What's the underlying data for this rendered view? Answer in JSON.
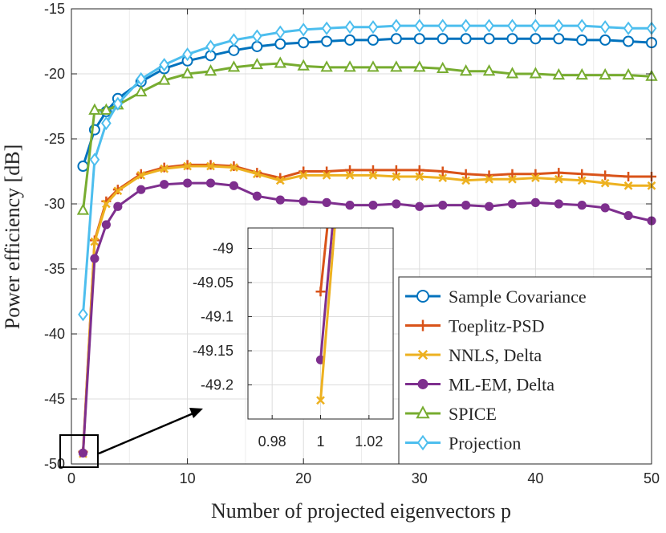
{
  "chart_data": {
    "type": "line",
    "xlabel": "Number of projected eigenvectors p",
    "ylabel": "Power efficiency [dB]",
    "xlim": [
      0,
      50
    ],
    "ylim": [
      -50,
      -15
    ],
    "xticks": [
      0,
      10,
      20,
      30,
      40,
      50
    ],
    "yticks": [
      -50,
      -45,
      -40,
      -35,
      -30,
      -25,
      -20,
      -15
    ],
    "grid": true,
    "legend_position": "bottom-right",
    "series": [
      {
        "name": "Sample Covariance",
        "color": "#0072BD",
        "marker": "circle",
        "x": [
          1,
          2,
          3,
          4,
          6,
          8,
          10,
          12,
          14,
          16,
          18,
          20,
          22,
          24,
          26,
          28,
          30,
          32,
          34,
          36,
          38,
          40,
          42,
          44,
          46,
          48,
          50
        ],
        "y": [
          -27.1,
          -24.3,
          -22.9,
          -21.9,
          -20.6,
          -19.6,
          -19.0,
          -18.6,
          -18.2,
          -17.9,
          -17.7,
          -17.6,
          -17.5,
          -17.4,
          -17.4,
          -17.3,
          -17.3,
          -17.3,
          -17.3,
          -17.3,
          -17.3,
          -17.3,
          -17.3,
          -17.4,
          -17.4,
          -17.5,
          -17.6
        ]
      },
      {
        "name": "Toeplitz-PSD",
        "color": "#D95319",
        "marker": "plus",
        "x": [
          1,
          2,
          3,
          4,
          6,
          8,
          10,
          12,
          14,
          16,
          18,
          20,
          22,
          24,
          26,
          28,
          30,
          32,
          34,
          36,
          38,
          40,
          42,
          44,
          46,
          48,
          50
        ],
        "y": [
          -49.06,
          -32.8,
          -29.8,
          -28.9,
          -27.7,
          -27.2,
          -27.0,
          -27.0,
          -27.1,
          -27.6,
          -28.0,
          -27.5,
          -27.5,
          -27.4,
          -27.4,
          -27.4,
          -27.4,
          -27.5,
          -27.7,
          -27.8,
          -27.7,
          -27.7,
          -27.6,
          -27.7,
          -27.8,
          -27.9,
          -27.9
        ]
      },
      {
        "name": "NNLS, Delta",
        "color": "#EDB120",
        "marker": "x",
        "x": [
          1,
          2,
          3,
          4,
          6,
          8,
          10,
          12,
          14,
          16,
          18,
          20,
          22,
          24,
          26,
          28,
          30,
          32,
          34,
          36,
          38,
          40,
          42,
          44,
          46,
          48,
          50
        ],
        "y": [
          -49.22,
          -32.9,
          -30.0,
          -29.0,
          -27.8,
          -27.3,
          -27.1,
          -27.1,
          -27.2,
          -27.7,
          -28.2,
          -27.8,
          -27.8,
          -27.8,
          -27.8,
          -27.9,
          -27.9,
          -28.0,
          -28.2,
          -28.1,
          -28.1,
          -28.0,
          -28.1,
          -28.2,
          -28.4,
          -28.6,
          -28.6
        ]
      },
      {
        "name": "ML-EM, Delta",
        "color": "#7E2F8E",
        "marker": "dot",
        "x": [
          1,
          2,
          3,
          4,
          6,
          8,
          10,
          12,
          14,
          16,
          18,
          20,
          22,
          24,
          26,
          28,
          30,
          32,
          34,
          36,
          38,
          40,
          42,
          44,
          46,
          48,
          50
        ],
        "y": [
          -49.16,
          -34.2,
          -31.6,
          -30.2,
          -28.9,
          -28.5,
          -28.4,
          -28.4,
          -28.6,
          -29.4,
          -29.7,
          -29.8,
          -29.9,
          -30.1,
          -30.1,
          -30.0,
          -30.2,
          -30.1,
          -30.1,
          -30.2,
          -30.0,
          -29.9,
          -30.0,
          -30.1,
          -30.3,
          -30.9,
          -31.3
        ]
      },
      {
        "name": "SPICE",
        "color": "#77AC30",
        "marker": "triangle",
        "x": [
          1,
          2,
          3,
          4,
          6,
          8,
          10,
          12,
          14,
          16,
          18,
          20,
          22,
          24,
          26,
          28,
          30,
          32,
          34,
          36,
          38,
          40,
          42,
          44,
          46,
          48,
          50
        ],
        "y": [
          -30.5,
          -22.8,
          -22.8,
          -22.4,
          -21.4,
          -20.5,
          -20.0,
          -19.8,
          -19.5,
          -19.3,
          -19.2,
          -19.4,
          -19.5,
          -19.5,
          -19.5,
          -19.5,
          -19.5,
          -19.6,
          -19.8,
          -19.8,
          -20.0,
          -20.0,
          -20.1,
          -20.1,
          -20.1,
          -20.1,
          -20.2
        ]
      },
      {
        "name": "Projection",
        "color": "#4DBEEE",
        "marker": "diamond",
        "x": [
          1,
          2,
          3,
          4,
          6,
          8,
          10,
          12,
          14,
          16,
          18,
          20,
          22,
          24,
          26,
          28,
          30,
          32,
          34,
          36,
          38,
          40,
          42,
          44,
          46,
          48,
          50
        ],
        "y": [
          -38.5,
          -26.6,
          -23.8,
          -22.3,
          -20.4,
          -19.3,
          -18.5,
          -17.9,
          -17.4,
          -17.1,
          -16.8,
          -16.6,
          -16.5,
          -16.4,
          -16.4,
          -16.3,
          -16.3,
          -16.3,
          -16.3,
          -16.3,
          -16.3,
          -16.3,
          -16.3,
          -16.3,
          -16.4,
          -16.5,
          -16.5
        ]
      }
    ],
    "inset": {
      "xlim": [
        0.97,
        1.03
      ],
      "ylim": [
        -49.25,
        -48.97
      ],
      "xticks": [
        0.98,
        1,
        1.02
      ],
      "xtick_labels": [
        "0.98",
        "1",
        "1.02"
      ],
      "yticks": [
        -49,
        -49.05,
        -49.1,
        -49.15,
        -49.2
      ],
      "ytick_labels": [
        "-49",
        "-49.05",
        "-49.1",
        "-49.15",
        "-49.2"
      ],
      "segments": [
        {
          "series": "Toeplitz-PSD",
          "x": [
            1,
            1.0167
          ],
          "y": [
            -49.0633,
            -48.5
          ],
          "marker_x": 1,
          "marker_y": -49.0633
        },
        {
          "series": "ML-EM, Delta",
          "x": [
            1,
            1.0167
          ],
          "y": [
            -49.1633,
            -48.5
          ],
          "marker_x": 1,
          "marker_y": -49.1633
        },
        {
          "series": "NNLS, Delta",
          "x": [
            1,
            1.0167
          ],
          "y": [
            -49.2227,
            -48.5
          ],
          "marker_x": 1,
          "marker_y": -49.2227
        }
      ]
    }
  }
}
